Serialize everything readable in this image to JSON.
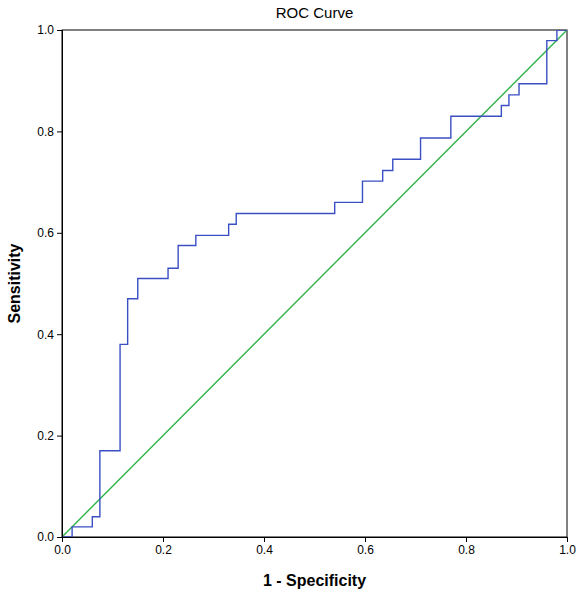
{
  "chart_data": {
    "type": "line",
    "title": "ROC Curve",
    "x_label": "1 - Specificity",
    "y_label": "Sensitivity",
    "xlim": [
      0,
      1
    ],
    "ylim": [
      0,
      1
    ],
    "xticks": [
      {
        "value": 0,
        "label": "0.0"
      },
      0.2,
      0.4,
      0.6,
      0.8,
      {
        "value": 1,
        "label": "1.0"
      }
    ],
    "yticks": [
      {
        "value": 0,
        "label": "0.0"
      },
      0.2,
      0.4,
      0.6,
      0.8,
      {
        "value": 1,
        "label": "1.0"
      }
    ],
    "series": [
      {
        "color": "#3a4fc4",
        "x": [
          0,
          0.02,
          0.02,
          0.06,
          0.06,
          0.075,
          0.075,
          0.115,
          0.115,
          0.13,
          0.13,
          0.15,
          0.15,
          0.21,
          0.21,
          0.23,
          0.23,
          0.265,
          0.265,
          0.33,
          0.33,
          0.345,
          0.345,
          0.54,
          0.54,
          0.595,
          0.595,
          0.635,
          0.635,
          0.655,
          0.655,
          0.71,
          0.71,
          0.77,
          0.77,
          0.87,
          0.87,
          0.885,
          0.885,
          0.905,
          0.905,
          0.96,
          0.96,
          0.98,
          0.98,
          1
        ],
        "values": [
          0,
          0,
          0.02,
          0.02,
          0.04,
          0.04,
          0.17,
          0.17,
          0.38,
          0.38,
          0.47,
          0.47,
          0.51,
          0.51,
          0.53,
          0.53,
          0.575,
          0.575,
          0.595,
          0.595,
          0.617,
          0.617,
          0.638,
          0.638,
          0.66,
          0.66,
          0.702,
          0.702,
          0.723,
          0.723,
          0.745,
          0.745,
          0.787,
          0.787,
          0.83,
          0.83,
          0.851,
          0.851,
          0.872,
          0.872,
          0.894,
          0.894,
          0.979,
          0.979,
          1,
          1
        ]
      },
      {
        "color": "#2fb34a",
        "x": [
          0,
          1
        ],
        "values": [
          0,
          1
        ]
      }
    ]
  }
}
